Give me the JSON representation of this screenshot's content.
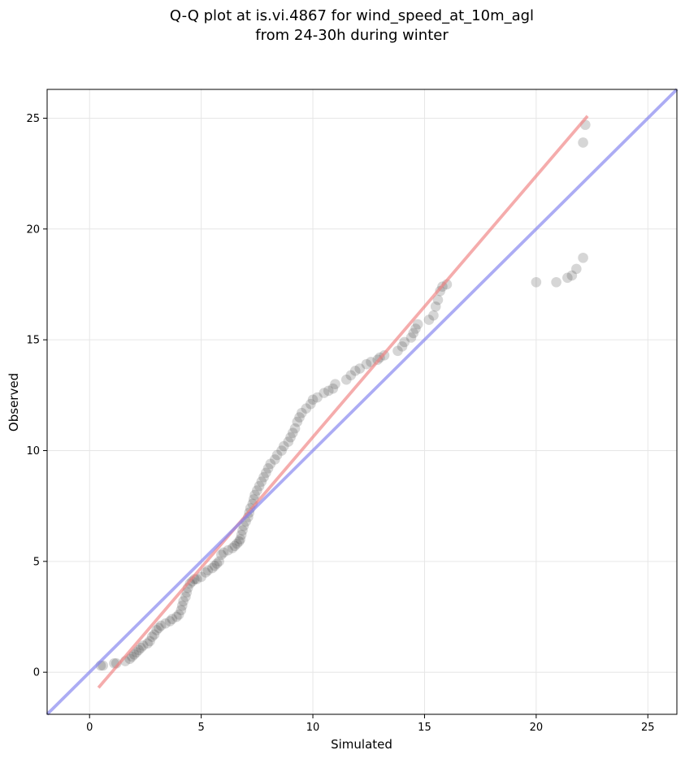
{
  "chart_data": {
    "type": "scatter",
    "title_lines": [
      "Q-Q plot at is.vi.4867 for wind_speed_at_10m_agl",
      "from 24-30h during winter"
    ],
    "xlabel": "Simulated",
    "ylabel": "Observed",
    "xlim": [
      -1.9,
      26.3
    ],
    "ylim": [
      -1.9,
      26.3
    ],
    "xticks": [
      0,
      5,
      10,
      15,
      20,
      25
    ],
    "yticks": [
      0,
      5,
      10,
      15,
      20,
      25
    ],
    "grid": true,
    "series": [
      {
        "kind": "points",
        "color": "#333333",
        "points": [
          [
            0.5,
            0.3
          ],
          [
            0.6,
            0.3
          ],
          [
            1.1,
            0.4
          ],
          [
            1.2,
            0.4
          ],
          [
            1.6,
            0.5
          ],
          [
            1.8,
            0.6
          ],
          [
            1.9,
            0.7
          ],
          [
            2.0,
            0.8
          ],
          [
            2.1,
            0.9
          ],
          [
            2.2,
            1.0
          ],
          [
            2.3,
            1.1
          ],
          [
            2.4,
            1.2
          ],
          [
            2.6,
            1.3
          ],
          [
            2.7,
            1.4
          ],
          [
            2.8,
            1.6
          ],
          [
            2.9,
            1.7
          ],
          [
            3.0,
            1.9
          ],
          [
            3.1,
            2.0
          ],
          [
            3.2,
            2.1
          ],
          [
            3.4,
            2.2
          ],
          [
            3.6,
            2.3
          ],
          [
            3.7,
            2.4
          ],
          [
            3.9,
            2.5
          ],
          [
            4.0,
            2.6
          ],
          [
            4.1,
            2.8
          ],
          [
            4.15,
            3.0
          ],
          [
            4.2,
            3.2
          ],
          [
            4.3,
            3.4
          ],
          [
            4.35,
            3.6
          ],
          [
            4.4,
            3.8
          ],
          [
            4.5,
            4.0
          ],
          [
            4.6,
            4.1
          ],
          [
            4.7,
            4.2
          ],
          [
            4.8,
            4.2
          ],
          [
            5.0,
            4.3
          ],
          [
            5.2,
            4.5
          ],
          [
            5.3,
            4.6
          ],
          [
            5.5,
            4.7
          ],
          [
            5.6,
            4.8
          ],
          [
            5.7,
            4.9
          ],
          [
            5.8,
            5.0
          ],
          [
            5.9,
            5.3
          ],
          [
            6.0,
            5.4
          ],
          [
            6.2,
            5.5
          ],
          [
            6.4,
            5.6
          ],
          [
            6.5,
            5.7
          ],
          [
            6.6,
            5.8
          ],
          [
            6.7,
            5.9
          ],
          [
            6.75,
            6.0
          ],
          [
            6.8,
            6.2
          ],
          [
            6.85,
            6.4
          ],
          [
            6.9,
            6.6
          ],
          [
            7.0,
            6.8
          ],
          [
            7.1,
            7.0
          ],
          [
            7.15,
            7.2
          ],
          [
            7.2,
            7.4
          ],
          [
            7.3,
            7.6
          ],
          [
            7.35,
            7.8
          ],
          [
            7.4,
            8.0
          ],
          [
            7.5,
            8.2
          ],
          [
            7.6,
            8.4
          ],
          [
            7.7,
            8.6
          ],
          [
            7.8,
            8.8
          ],
          [
            7.9,
            9.0
          ],
          [
            8.0,
            9.2
          ],
          [
            8.1,
            9.4
          ],
          [
            8.3,
            9.6
          ],
          [
            8.4,
            9.8
          ],
          [
            8.6,
            10.0
          ],
          [
            8.7,
            10.2
          ],
          [
            8.9,
            10.4
          ],
          [
            9.0,
            10.6
          ],
          [
            9.1,
            10.8
          ],
          [
            9.2,
            11.0
          ],
          [
            9.3,
            11.3
          ],
          [
            9.4,
            11.5
          ],
          [
            9.5,
            11.7
          ],
          [
            9.7,
            11.9
          ],
          [
            9.9,
            12.1
          ],
          [
            10.0,
            12.3
          ],
          [
            10.2,
            12.4
          ],
          [
            10.5,
            12.6
          ],
          [
            10.7,
            12.7
          ],
          [
            10.9,
            12.8
          ],
          [
            11.0,
            13.0
          ],
          [
            11.5,
            13.2
          ],
          [
            11.7,
            13.4
          ],
          [
            11.9,
            13.6
          ],
          [
            12.1,
            13.7
          ],
          [
            12.4,
            13.9
          ],
          [
            12.6,
            14.0
          ],
          [
            12.9,
            14.1
          ],
          [
            13.0,
            14.2
          ],
          [
            13.2,
            14.3
          ],
          [
            13.8,
            14.5
          ],
          [
            14.0,
            14.7
          ],
          [
            14.1,
            14.9
          ],
          [
            14.4,
            15.1
          ],
          [
            14.5,
            15.3
          ],
          [
            14.6,
            15.5
          ],
          [
            14.7,
            15.7
          ],
          [
            15.2,
            15.9
          ],
          [
            15.4,
            16.1
          ],
          [
            15.5,
            16.5
          ],
          [
            15.6,
            16.8
          ],
          [
            15.7,
            17.2
          ],
          [
            15.8,
            17.4
          ],
          [
            16.0,
            17.5
          ],
          [
            20.0,
            17.6
          ],
          [
            20.9,
            17.6
          ],
          [
            21.4,
            17.8
          ],
          [
            21.6,
            17.9
          ],
          [
            21.8,
            18.2
          ],
          [
            22.1,
            18.7
          ],
          [
            22.1,
            23.9
          ],
          [
            22.2,
            24.7
          ]
        ]
      },
      {
        "kind": "line",
        "color": "#f08080",
        "from": [
          0.4,
          -0.7
        ],
        "to": [
          22.3,
          25.1
        ]
      },
      {
        "kind": "line",
        "color": "#8080ee",
        "from": [
          -1.9,
          -1.9
        ],
        "to": [
          26.3,
          26.3
        ]
      }
    ]
  }
}
